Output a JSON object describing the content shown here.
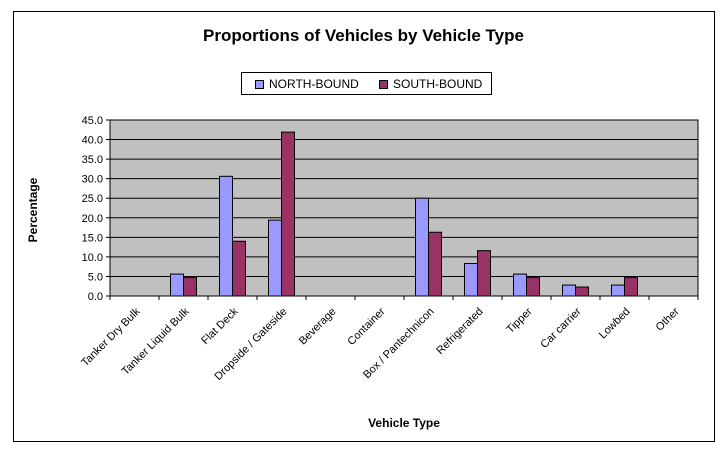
{
  "chart_data": {
    "type": "bar",
    "title": "Proportions of Vehicles by Vehicle Type",
    "xlabel": "Vehicle Type",
    "ylabel": "Percentage",
    "ylim": [
      0,
      45
    ],
    "yticks": [
      "0.0",
      "5.0",
      "10.0",
      "15.0",
      "20.0",
      "25.0",
      "30.0",
      "35.0",
      "40.0",
      "45.0"
    ],
    "grid": true,
    "legend_position": "top-center",
    "categories": [
      "Tanker Dry Bulk",
      "Tanker Liquid Bulk",
      "Flat Deck",
      "Dropside / Gateside",
      "Beverage",
      "Container",
      "Box / Pantechnicon",
      "Refrigerated",
      "Tipper",
      "Car carrier",
      "Lowbed",
      "Other"
    ],
    "series": [
      {
        "name": "NORTH-BOUND",
        "color": "#9999ff",
        "values": [
          0,
          5.6,
          30.6,
          19.4,
          0,
          0,
          25.0,
          8.3,
          5.6,
          2.8,
          2.8,
          0
        ]
      },
      {
        "name": "SOUTH-BOUND",
        "color": "#993366",
        "values": [
          0,
          4.7,
          14.0,
          41.9,
          0,
          0,
          16.3,
          11.6,
          4.7,
          2.3,
          4.7,
          0
        ]
      }
    ],
    "plot_background": "#c0c0c0"
  }
}
